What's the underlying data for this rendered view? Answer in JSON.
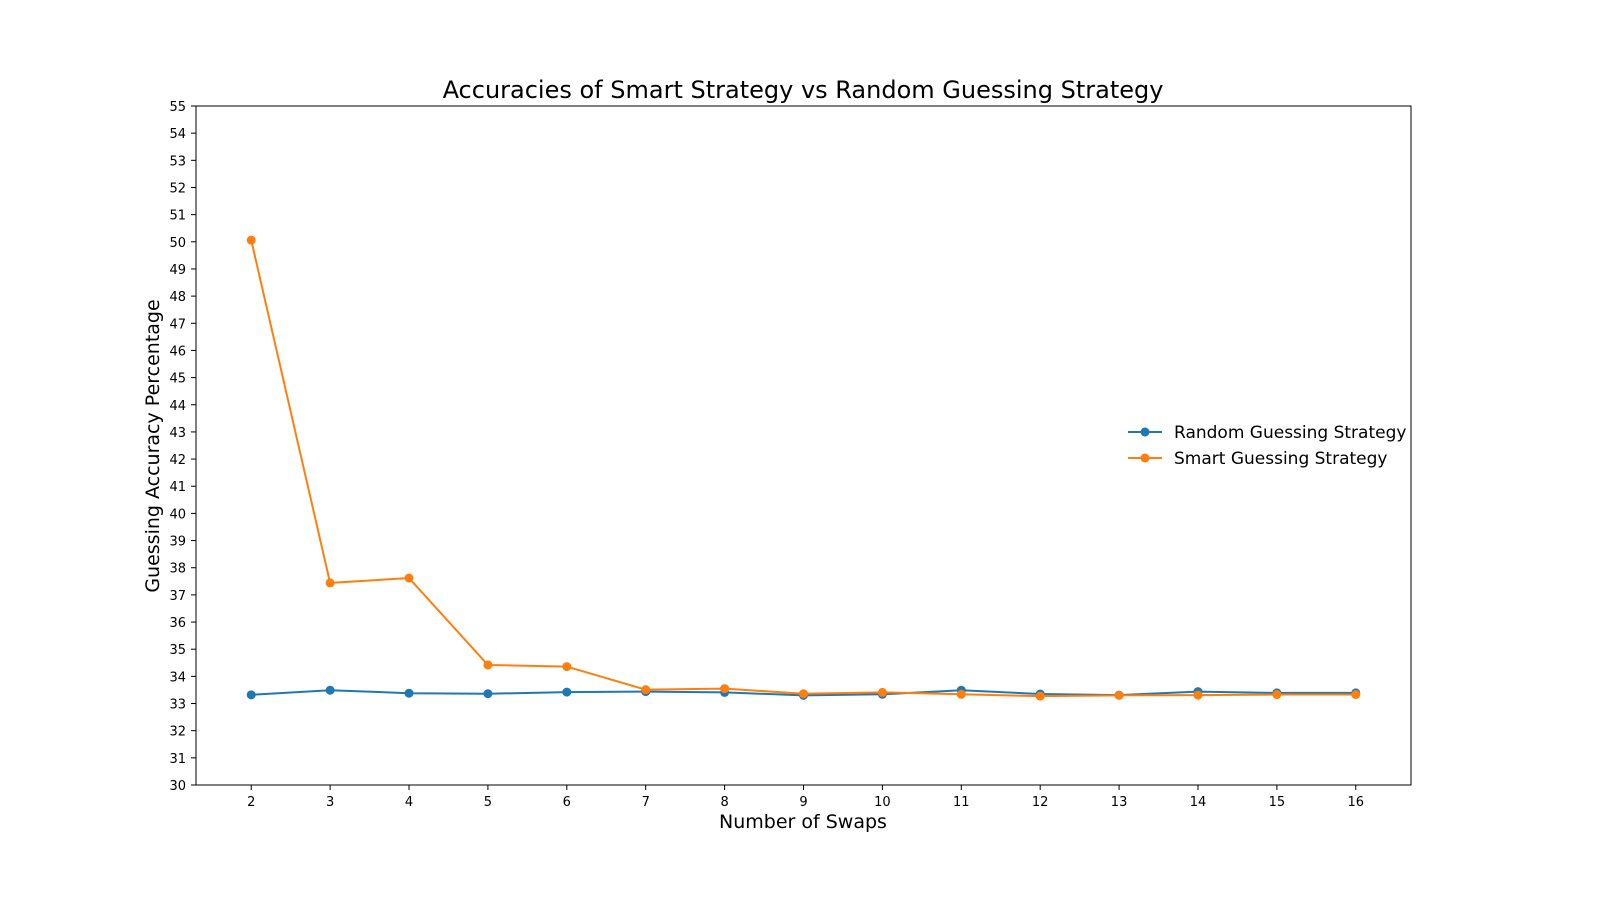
{
  "chart_data": {
    "type": "line",
    "title": "Accuracies of Smart Strategy vs Random Guessing Strategy",
    "xlabel": "Number of Swaps",
    "ylabel": "Guessing Accuracy Percentage",
    "x": [
      2,
      3,
      4,
      5,
      6,
      7,
      8,
      9,
      10,
      11,
      12,
      13,
      14,
      15,
      16
    ],
    "xlim": [
      1.3,
      16.7
    ],
    "ylim": [
      30,
      55
    ],
    "xticks": [
      2,
      3,
      4,
      5,
      6,
      7,
      8,
      9,
      10,
      11,
      12,
      13,
      14,
      15,
      16
    ],
    "yticks": [
      30,
      31,
      32,
      33,
      34,
      35,
      36,
      37,
      38,
      39,
      40,
      41,
      42,
      43,
      44,
      45,
      46,
      47,
      48,
      49,
      50,
      51,
      52,
      53,
      54,
      55
    ],
    "grid": false,
    "legend_position": "center-right",
    "series": [
      {
        "name": "Random Guessing Strategy",
        "color": "#1f77b4",
        "values": [
          33.32,
          33.49,
          33.38,
          33.36,
          33.42,
          33.44,
          33.41,
          33.3,
          33.34,
          33.49,
          33.35,
          33.31,
          33.44,
          33.39,
          33.39
        ]
      },
      {
        "name": "Smart Guessing Strategy",
        "color": "#ff7f0e",
        "values": [
          50.06,
          37.44,
          37.62,
          34.42,
          34.36,
          33.51,
          33.55,
          33.36,
          33.41,
          33.34,
          33.27,
          33.3,
          33.31,
          33.33,
          33.33
        ]
      }
    ]
  }
}
